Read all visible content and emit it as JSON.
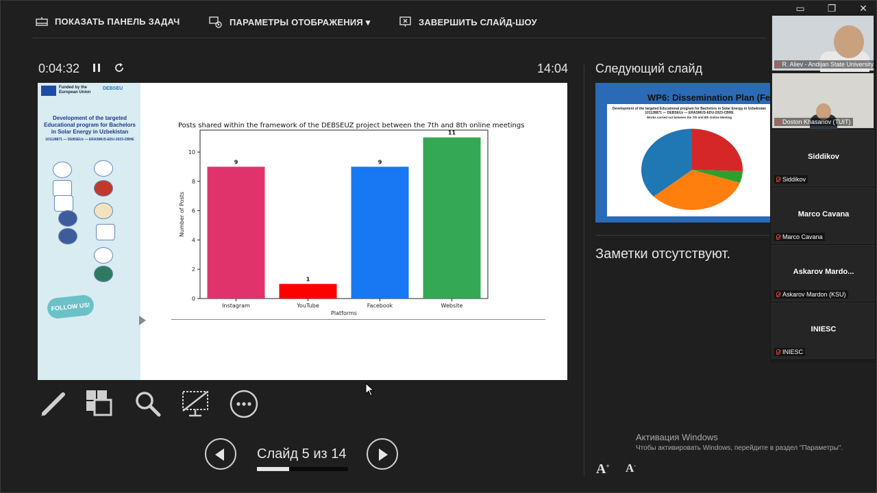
{
  "topbar": {
    "show_taskbar": "ПОКАЗАТЬ ПАНЕЛЬ ЗАДАЧ",
    "display_settings": "ПАРАМЕТРЫ ОТОБРАЖЕНИЯ ▾",
    "end_slideshow": "ЗАВЕРШИТЬ СЛАЙД-ШОУ"
  },
  "window_controls": [
    "▭",
    "❐",
    "✕"
  ],
  "timer": "0:04:32",
  "clock": "14:04",
  "slide": {
    "funded_text": "Funded by the European Union",
    "debseu_logo": "DEBSEU",
    "project_title": "Development of the targeted Educational program for Bachelors in Solar Energy in Uzbekistan",
    "project_id": "101128871 — DEBSEUz — ERASMUS-EDU-2023-CBHE",
    "follow_us": "FOLLOW US!"
  },
  "chart_data": {
    "type": "bar",
    "title": "Posts shared within the framework of the DEBSEUZ project between the 7th and 8th online meetings",
    "categories": [
      "Instagram",
      "YouTube",
      "Facebook",
      "Website"
    ],
    "values": [
      9,
      1,
      9,
      11
    ],
    "colors": [
      "#e0336c",
      "#ff0000",
      "#1877f2",
      "#34a853"
    ],
    "xlabel": "Platforms",
    "ylabel": "Number of Posts",
    "ylim": [
      0,
      11.5
    ],
    "yticks": [
      0,
      2,
      4,
      6,
      8,
      10
    ],
    "data_labels": [
      "9",
      "1",
      "9",
      "11"
    ]
  },
  "navigation": {
    "slide_counter": "Слайд 5 из 14",
    "progress": 0.357
  },
  "next_slide": {
    "label": "Следующий слайд",
    "title": "WP6: Dissemination Plan (FerP",
    "subtitle": "Development of the targeted Educational program for Bachelors in Solar Energy in Uzbekistan 101128871 — DEBSEUz — ERASMUS-EDU-2023-CBHE",
    "chart_title": "Works carried out between the 7th and 8th Online Meeting",
    "pie_colors": [
      "#d62728",
      "#2ca02c",
      "#ff7f0e",
      "#1f77b4"
    ]
  },
  "notes": "Заметки отсутствуют.",
  "windows_activation": {
    "title": "Активация Windows",
    "text": "Чтобы активировать Windows, перейдите в раздел \"Параметры\"."
  },
  "participants": [
    {
      "name": "",
      "label": "R. Aliev - Andijan State University",
      "video": true
    },
    {
      "name": "",
      "label": "Doston Khasanov (TUIT)",
      "video": true
    },
    {
      "name": "Siddikov",
      "label": "Siddikov",
      "video": false
    },
    {
      "name": "Marco Cavana",
      "label": "Marco Cavana",
      "video": false
    },
    {
      "name": "Askarov Mardo...",
      "label": "Askarov Mardon (KSU)",
      "video": false
    },
    {
      "name": "INIESC",
      "label": "INIESC",
      "video": false
    }
  ]
}
